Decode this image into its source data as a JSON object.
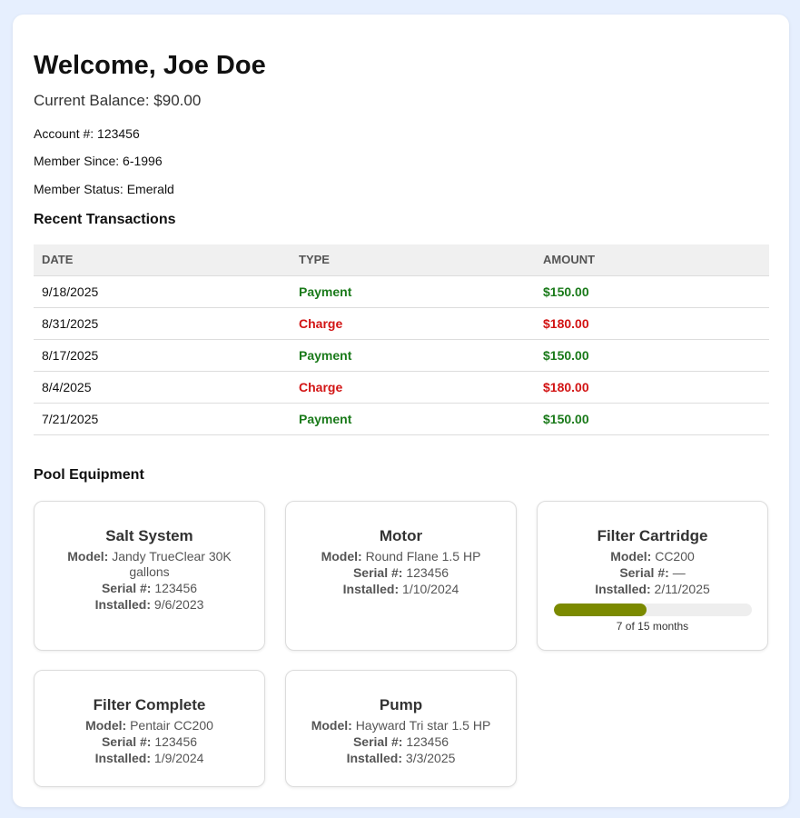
{
  "header": {
    "welcome": "Welcome, Joe Doe",
    "balance": "Current Balance: $90.00",
    "account": "Account #: 123456",
    "member_since": "Member Since: 6-1996",
    "member_status": "Member Status: Emerald"
  },
  "transactions": {
    "title": "Recent Transactions",
    "columns": [
      "DATE",
      "TYPE",
      "AMOUNT"
    ],
    "rows": [
      {
        "date": "9/18/2025",
        "type": "Payment",
        "amount": "$150.00"
      },
      {
        "date": "8/31/2025",
        "type": "Charge",
        "amount": "$180.00"
      },
      {
        "date": "8/17/2025",
        "type": "Payment",
        "amount": "$150.00"
      },
      {
        "date": "8/4/2025",
        "type": "Charge",
        "amount": "$180.00"
      },
      {
        "date": "7/21/2025",
        "type": "Payment",
        "amount": "$150.00"
      }
    ]
  },
  "equipment": {
    "title": "Pool Equipment",
    "labels": {
      "model": "Model:",
      "serial": "Serial #:",
      "installed": "Installed:"
    },
    "items": [
      {
        "name": "Salt System",
        "model": "Jandy TrueClear 30K gallons",
        "serial": "123456",
        "installed": "9/6/2023"
      },
      {
        "name": "Motor",
        "model": "Round Flane 1.5 HP",
        "serial": "123456",
        "installed": "1/10/2024"
      },
      {
        "name": "Filter Cartridge",
        "model": "CC200",
        "serial": "—",
        "installed": "2/11/2025",
        "progress_text": "7 of 15 months",
        "progress_fraction": 0.4667
      },
      {
        "name": "Filter Complete",
        "model": "Pentair CC200",
        "serial": "123456",
        "installed": "1/9/2024"
      },
      {
        "name": "Pump",
        "model": "Hayward Tri star 1.5 HP",
        "serial": "123456",
        "installed": "3/3/2025"
      }
    ]
  },
  "colors": {
    "background": "#e6effe",
    "payment": "#1a7a1a",
    "charge": "#d21414",
    "progress_fill": "#7b8a00"
  }
}
